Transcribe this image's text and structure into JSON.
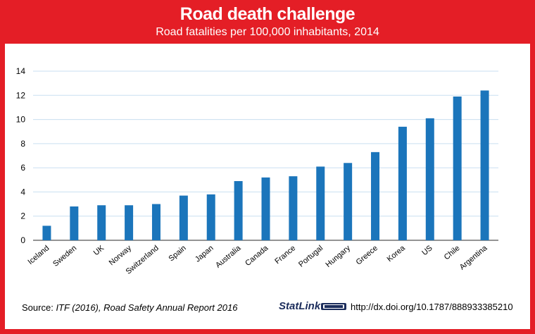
{
  "header": {
    "title": "Road death challenge",
    "subtitle": "Road fatalities per 100,000 inhabitants, 2014"
  },
  "footer": {
    "source_label": "Source:",
    "source_text": "ITF (2016), Road Safety Annual Report 2016",
    "statlink_label": "StatLink",
    "doi": "http://dx.doi.org/10.1787/888933385210"
  },
  "colors": {
    "background": "#e41e26",
    "bar": "#1b75bb",
    "grid": "#c9dff0"
  },
  "chart_data": {
    "type": "bar",
    "title": "Road death challenge",
    "subtitle": "Road fatalities per 100,000 inhabitants, 2014",
    "categories": [
      "Iceland",
      "Sweden",
      "UK",
      "Norway",
      "Switzerland",
      "Spain",
      "Japan",
      "Australia",
      "Canada",
      "France",
      "Portugal",
      "Hungary",
      "Greece",
      "Korea",
      "US",
      "Chile",
      "Argentina"
    ],
    "values": [
      1.2,
      2.8,
      2.9,
      2.9,
      3.0,
      3.7,
      3.8,
      4.9,
      5.2,
      5.3,
      6.1,
      6.4,
      7.3,
      9.4,
      10.1,
      11.9,
      12.4
    ],
    "xlabel": "",
    "ylabel": "",
    "ylim": [
      0,
      14
    ],
    "yticks": [
      0,
      2,
      4,
      6,
      8,
      10,
      12,
      14
    ],
    "grid": true,
    "legend": "none"
  }
}
